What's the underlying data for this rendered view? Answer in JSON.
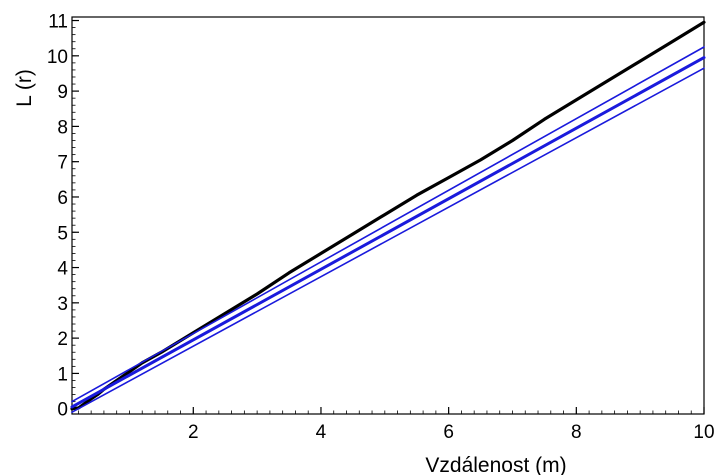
{
  "chart_data": {
    "type": "line",
    "xlabel": "Vzdálenost (m)",
    "ylabel": "L (r)",
    "xlim": [
      0.1,
      10
    ],
    "ylim": [
      -0.15,
      11.1
    ],
    "x_ticks": [
      2,
      4,
      6,
      8,
      10
    ],
    "y_ticks": [
      0,
      1,
      2,
      3,
      4,
      5,
      6,
      7,
      8,
      9,
      10,
      11
    ],
    "grid": false,
    "legend": "none",
    "series": [
      {
        "color": "#000000",
        "x": [
          0.1,
          0.2,
          0.3,
          0.4,
          0.5,
          0.6,
          0.8,
          1.0,
          1.2,
          1.5,
          2.0,
          2.5,
          3.0,
          3.5,
          4.0,
          4.5,
          5.0,
          5.5,
          6.0,
          6.5,
          7.0,
          7.5,
          8.0,
          8.5,
          9.0,
          9.5,
          10.0
        ],
        "y": [
          0.0,
          0.02,
          0.15,
          0.28,
          0.4,
          0.55,
          0.8,
          1.05,
          1.3,
          1.6,
          2.15,
          2.7,
          3.25,
          3.85,
          4.4,
          4.95,
          5.5,
          6.05,
          6.55,
          7.05,
          7.6,
          8.2,
          8.75,
          9.3,
          9.85,
          10.4,
          10.95
        ]
      },
      {
        "color": "#1a1adc",
        "x": [
          0.1,
          10.0
        ],
        "y": [
          0.05,
          9.95
        ]
      },
      {
        "color": "#1a1adc",
        "x": [
          0.1,
          10.0
        ],
        "y": [
          0.2,
          10.25
        ]
      },
      {
        "color": "#1a1adc",
        "x": [
          0.1,
          10.0
        ],
        "y": [
          -0.1,
          9.65
        ]
      }
    ]
  }
}
